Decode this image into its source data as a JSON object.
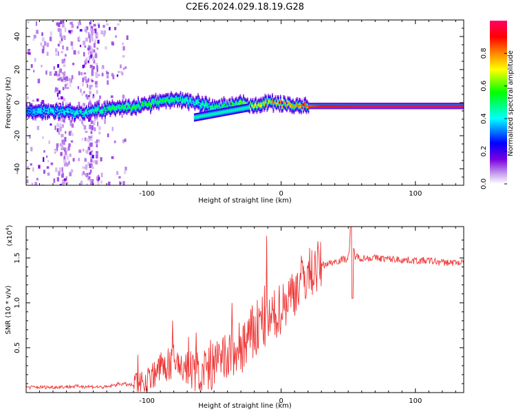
{
  "figure_title": "C2E6.2024.029.18.19.G28",
  "chart_data": [
    {
      "type": "heatmap",
      "title": "C2E6.2024.029.18.19.G28",
      "xlabel": "Height of straight line (km)",
      "ylabel": "Frequency (Hz)",
      "xlim": [
        -190,
        136
      ],
      "ylim": [
        -50,
        50
      ],
      "xticks": [
        -100,
        0,
        100
      ],
      "yticks": [
        -40,
        -20,
        0,
        20,
        40
      ],
      "xtick_labels": [
        "-100",
        "0",
        "100"
      ],
      "ytick_labels": [
        "-40",
        "-20",
        "0",
        "20",
        "40"
      ],
      "colorbar": {
        "label": "Normalized spectral amplitude",
        "range": [
          0,
          1
        ],
        "ticks": [
          0.0,
          0.2,
          0.4,
          0.6,
          0.8
        ],
        "tick_labels": [
          "0.0",
          "0.2",
          "0.4",
          "0.6",
          "0.8"
        ],
        "colors": [
          "#ffffff",
          "#c9a3ee",
          "#7a00e0",
          "#0000ff",
          "#00ffff",
          "#00ff00",
          "#ffff00",
          "#ff8800",
          "#ff0000",
          "#ff0066"
        ]
      },
      "ridge": {
        "description_points_x": [
          -190,
          -170,
          -150,
          -130,
          -110,
          -90,
          -80,
          -70,
          -60,
          -50,
          -40,
          -30,
          -20,
          -10,
          0,
          10,
          30,
          60,
          90,
          120,
          136
        ],
        "frequency_hz": [
          -6,
          -5,
          -6,
          -4,
          -3,
          1,
          2,
          1,
          -1,
          -3,
          -2,
          -1,
          -2,
          0,
          -1,
          -2,
          -2,
          -2,
          -2,
          -2,
          -2
        ],
        "amplitude": [
          0.35,
          0.4,
          0.45,
          0.5,
          0.55,
          0.55,
          0.5,
          0.45,
          0.45,
          0.5,
          0.55,
          0.6,
          0.7,
          0.75,
          0.8,
          0.8,
          0.9,
          0.95,
          0.95,
          0.95,
          0.95
        ]
      }
    },
    {
      "type": "line",
      "xlabel": "Height of straight line (km)",
      "ylabel": "SNR (10 * v/v)",
      "y_scale_label": "(x10",
      "y_scale_exponent": "4",
      "y_scale_suffix": ")",
      "xlim": [
        -190,
        136
      ],
      "ylim": [
        0.0,
        1.85
      ],
      "xticks": [
        -100,
        0,
        100
      ],
      "yticks": [
        0.5,
        1.0,
        1.5
      ],
      "xtick_labels": [
        "-100",
        "0",
        "100"
      ],
      "ytick_labels": [
        "0.5",
        "1.0",
        "1.5"
      ],
      "color": "#ee3333",
      "series": [
        {
          "name": "SNR",
          "x": [
            -190,
            -170,
            -150,
            -130,
            -120,
            -110,
            -100,
            -90,
            -80,
            -70,
            -60,
            -50,
            -40,
            -30,
            -20,
            -15,
            -10,
            -5,
            0,
            5,
            10,
            15,
            20,
            25,
            30,
            40,
            50,
            52,
            55,
            60,
            70,
            80,
            90,
            100,
            110,
            120,
            136
          ],
          "values": [
            0.04,
            0.04,
            0.05,
            0.04,
            0.08,
            0.06,
            0.1,
            0.22,
            0.28,
            0.2,
            0.15,
            0.2,
            0.3,
            0.4,
            0.55,
            0.7,
            0.75,
            0.85,
            0.95,
            1.05,
            1.15,
            1.25,
            1.32,
            1.38,
            1.42,
            1.46,
            1.5,
            1.8,
            1.52,
            1.5,
            1.5,
            1.49,
            1.48,
            1.47,
            1.47,
            1.45,
            1.45
          ]
        }
      ]
    }
  ]
}
